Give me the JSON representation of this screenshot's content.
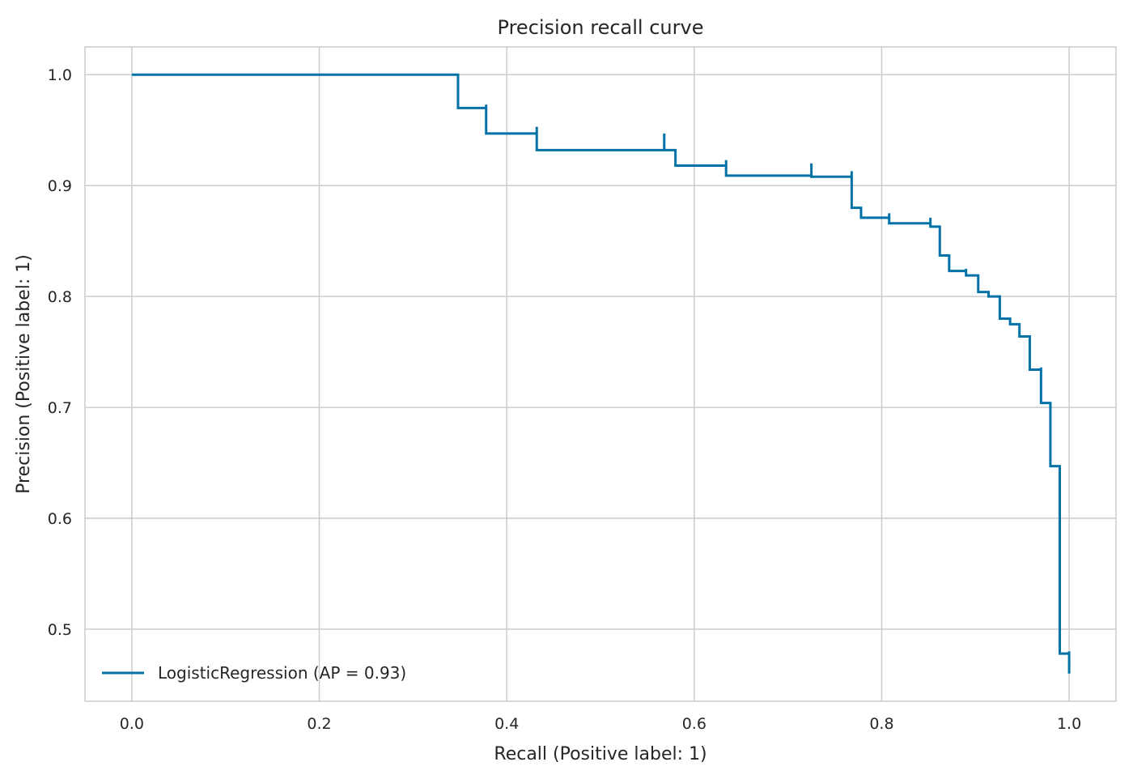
{
  "chart_data": {
    "type": "line",
    "title": "Precision recall curve",
    "xlabel": "Recall (Positive label: 1)",
    "ylabel": "Precision (Positive label: 1)",
    "xlim": [
      -0.05,
      1.05
    ],
    "ylim": [
      0.435,
      1.025
    ],
    "xticks": [
      "0.0",
      "0.2",
      "0.4",
      "0.6",
      "0.8",
      "1.0"
    ],
    "yticks": [
      "0.5",
      "0.6",
      "0.7",
      "0.8",
      "0.9",
      "1.0"
    ],
    "grid": true,
    "legend_position": "lower-left",
    "line_color": "#0072a8",
    "series": [
      {
        "name": "LogisticRegression (AP = 0.93)",
        "step": "post",
        "x": [
          0.0,
          0.348,
          0.348,
          0.378,
          0.378,
          0.432,
          0.432,
          0.568,
          0.568,
          0.58,
          0.58,
          0.634,
          0.634,
          0.725,
          0.725,
          0.768,
          0.768,
          0.778,
          0.778,
          0.808,
          0.808,
          0.852,
          0.852,
          0.862,
          0.862,
          0.872,
          0.872,
          0.89,
          0.89,
          0.903,
          0.903,
          0.914,
          0.914,
          0.926,
          0.926,
          0.937,
          0.937,
          0.947,
          0.947,
          0.958,
          0.958,
          0.97,
          0.97,
          0.98,
          0.98,
          0.99,
          0.99,
          1.0,
          1.0
        ],
        "y": [
          1.0,
          1.0,
          0.97,
          0.973,
          0.947,
          0.953,
          0.932,
          0.947,
          0.932,
          0.932,
          0.918,
          0.923,
          0.909,
          0.92,
          0.908,
          0.913,
          0.88,
          0.88,
          0.871,
          0.875,
          0.866,
          0.871,
          0.863,
          0.863,
          0.837,
          0.837,
          0.823,
          0.825,
          0.819,
          0.819,
          0.804,
          0.804,
          0.8,
          0.8,
          0.78,
          0.78,
          0.775,
          0.775,
          0.764,
          0.764,
          0.734,
          0.736,
          0.704,
          0.704,
          0.647,
          0.648,
          0.478,
          0.48,
          0.46
        ]
      }
    ]
  }
}
